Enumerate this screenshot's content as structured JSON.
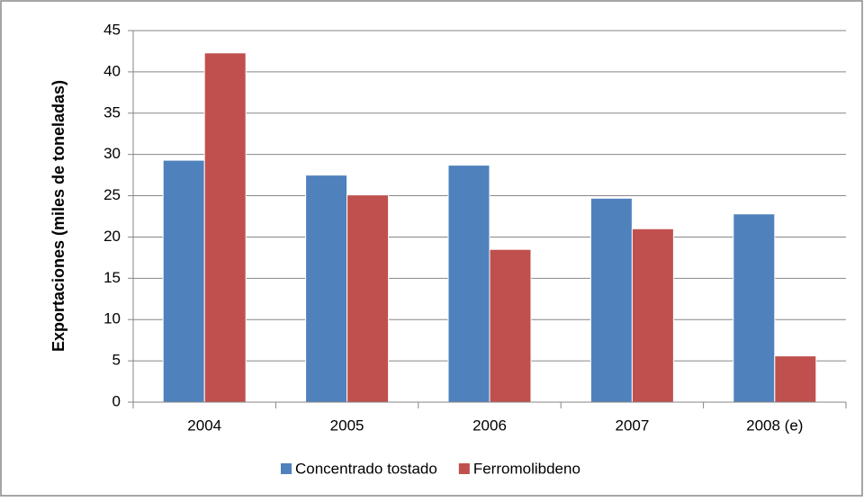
{
  "chart_data": {
    "type": "bar",
    "y_label": "Exportaciones (miles de toneladas)",
    "categories": [
      "2004",
      "2005",
      "2006",
      "2007",
      "2008 (e)"
    ],
    "series": [
      {
        "name": "Concentrado tostado",
        "color": "#4f81bd",
        "values": [
          29.3,
          27.5,
          28.7,
          24.7,
          22.8
        ]
      },
      {
        "name": "Ferromolibdeno",
        "color": "#c0504d",
        "values": [
          42.3,
          25.1,
          18.5,
          21.0,
          5.6
        ]
      }
    ],
    "ylim": [
      0,
      45
    ],
    "yticks": [
      0,
      5,
      10,
      15,
      20,
      25,
      30,
      35,
      40,
      45
    ],
    "grid": true,
    "legend": "bottom"
  }
}
